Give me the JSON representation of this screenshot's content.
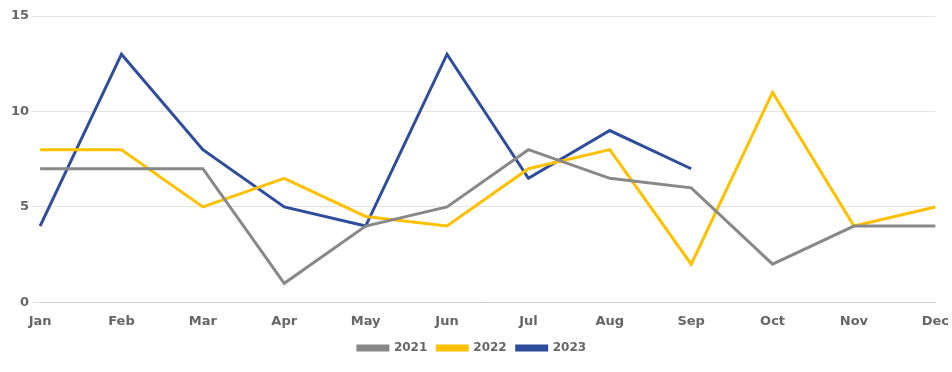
{
  "chart_data": {
    "type": "line",
    "categories": [
      "Jan",
      "Feb",
      "Mar",
      "Apr",
      "May",
      "Jun",
      "Jul",
      "Aug",
      "Sep",
      "Oct",
      "Nov",
      "Dec"
    ],
    "series": [
      {
        "name": "2021",
        "color": "#888888",
        "values": [
          7,
          7,
          7,
          1,
          4,
          5,
          8,
          6.5,
          6,
          2,
          4,
          4
        ]
      },
      {
        "name": "2022",
        "color": "#FFC000",
        "values": [
          8,
          8,
          5,
          6.5,
          4.5,
          4,
          7,
          8,
          2,
          11,
          4,
          5
        ]
      },
      {
        "name": "2023",
        "color": "#2E4D9C",
        "values": [
          4,
          13,
          8,
          5,
          4,
          13,
          6.5,
          9,
          7,
          null,
          null,
          null
        ]
      }
    ],
    "ylim": [
      0,
      15
    ],
    "yticks": [
      0,
      5,
      10,
      15
    ],
    "grid": true,
    "legend": "bottom"
  }
}
